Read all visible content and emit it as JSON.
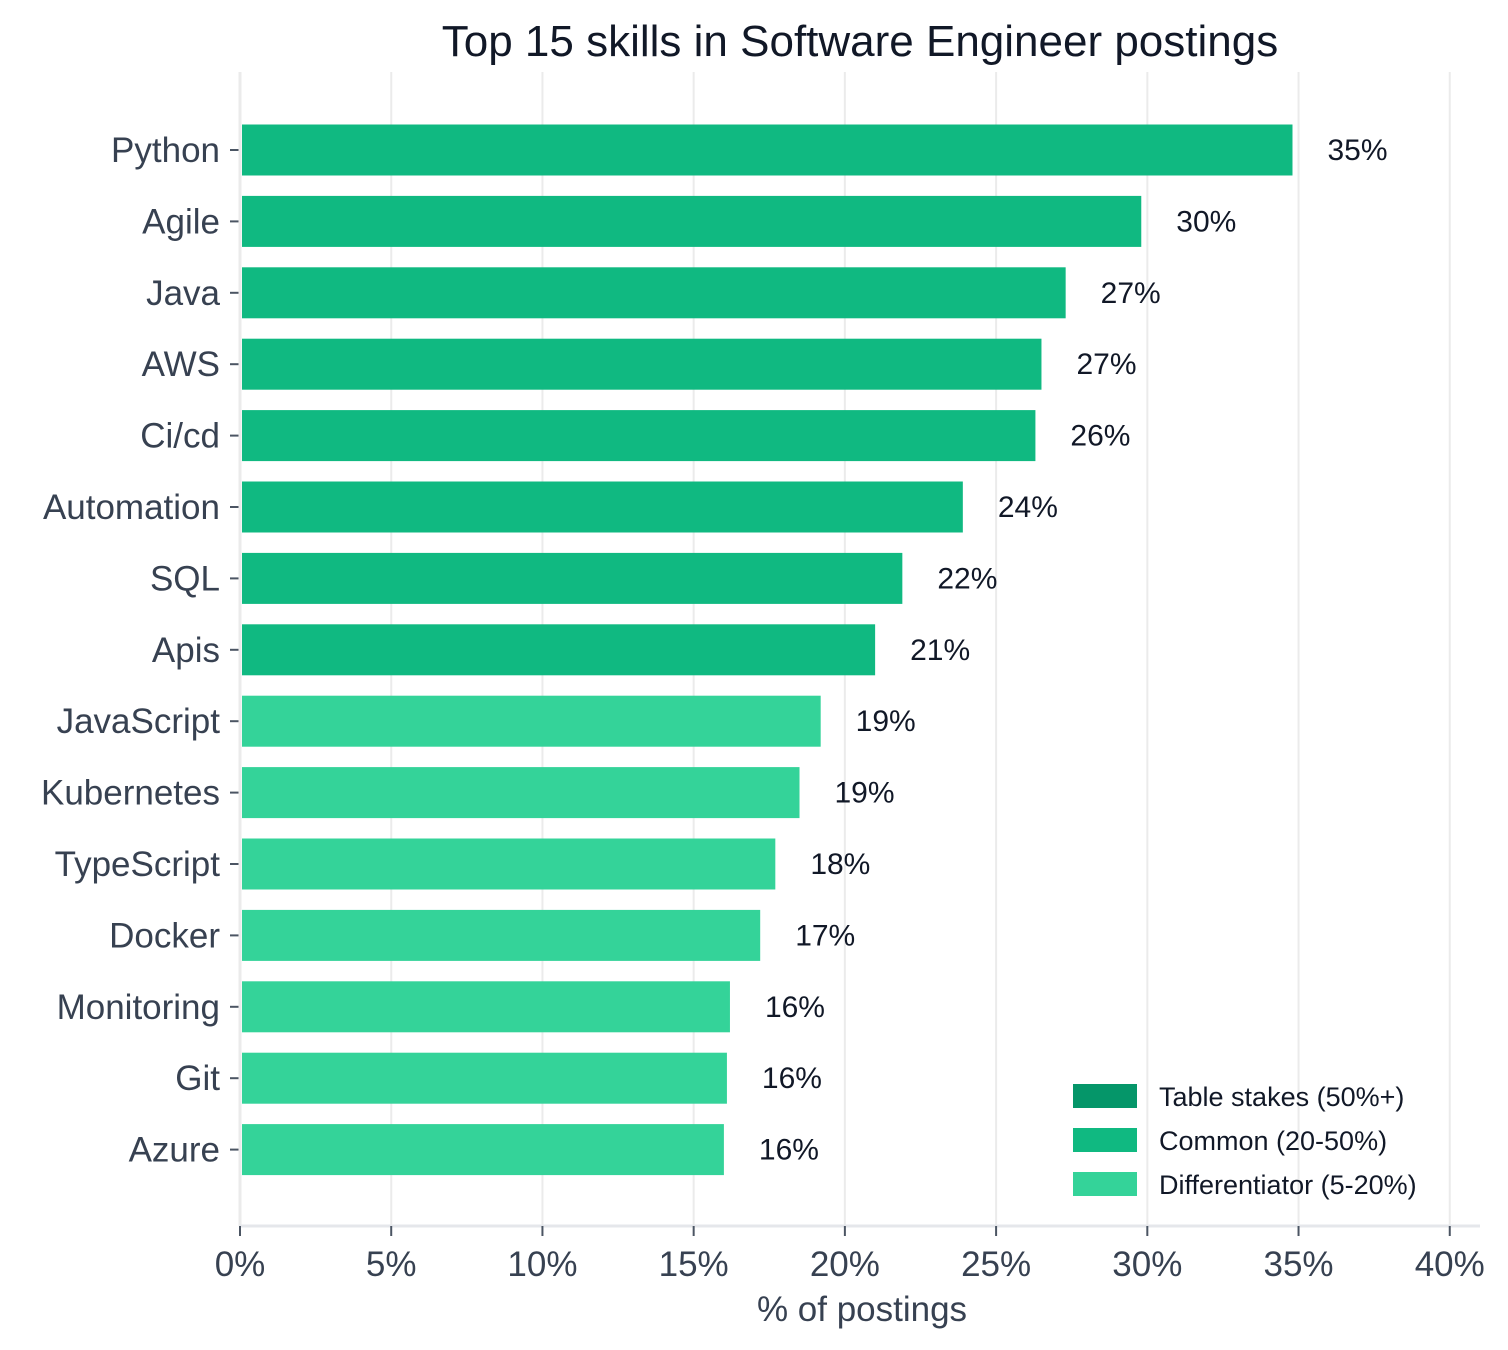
{
  "chart_data": {
    "type": "bar",
    "orientation": "horizontal",
    "title": "Top 15 skills in Software Engineer postings",
    "xlabel": "% of postings",
    "ylabel": "",
    "xlim": [
      0,
      41
    ],
    "grid": "vertical",
    "legend_position": "bottom-right",
    "x_ticks": [
      0,
      5,
      10,
      15,
      20,
      25,
      30,
      35,
      40
    ],
    "x_tick_labels": [
      "0%",
      "5%",
      "10%",
      "15%",
      "20%",
      "25%",
      "30%",
      "35%",
      "40%"
    ],
    "categories": [
      "Python",
      "Agile",
      "Java",
      "AWS",
      "Ci/cd",
      "Automation",
      "SQL",
      "Apis",
      "JavaScript",
      "Kubernetes",
      "TypeScript",
      "Docker",
      "Monitoring",
      "Git",
      "Azure"
    ],
    "values": [
      34.8,
      29.8,
      27.3,
      26.5,
      26.3,
      23.9,
      21.9,
      21.0,
      19.2,
      18.5,
      17.7,
      17.2,
      16.2,
      16.1,
      16.0
    ],
    "value_labels": [
      "35%",
      "30%",
      "27%",
      "27%",
      "26%",
      "24%",
      "22%",
      "21%",
      "19%",
      "19%",
      "18%",
      "17%",
      "16%",
      "16%",
      "16%"
    ],
    "tiers": [
      "common",
      "common",
      "common",
      "common",
      "common",
      "common",
      "common",
      "common",
      "differentiator",
      "differentiator",
      "differentiator",
      "differentiator",
      "differentiator",
      "differentiator",
      "differentiator"
    ],
    "legend": [
      {
        "key": "table_stakes",
        "label": "Table stakes (50%+)",
        "color": "#059669"
      },
      {
        "key": "common",
        "label": "Common (20-50%)",
        "color": "#10b981"
      },
      {
        "key": "differentiator",
        "label": "Differentiator (5-20%)",
        "color": "#34d399"
      }
    ]
  }
}
